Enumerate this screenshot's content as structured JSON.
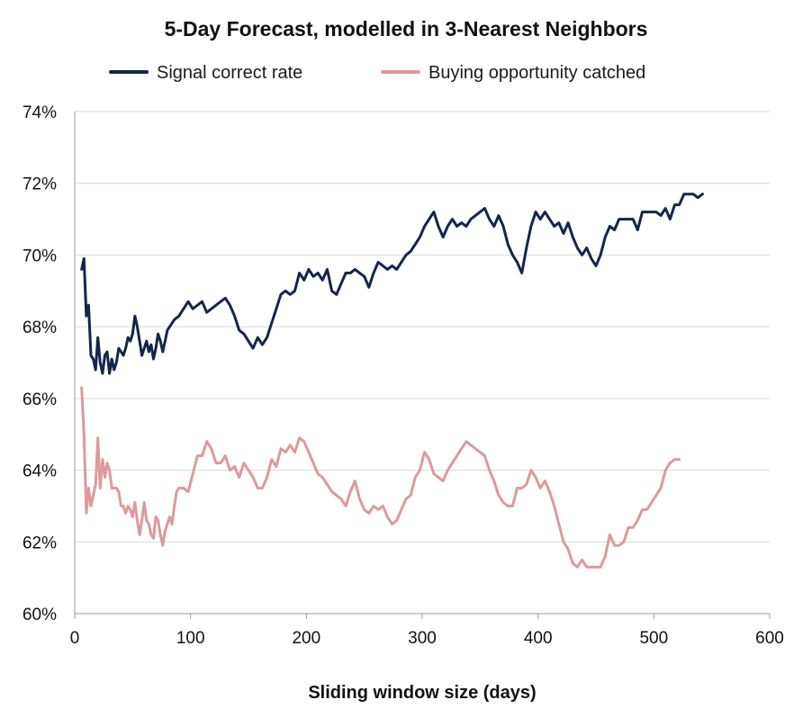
{
  "chart_data": {
    "type": "line",
    "title": "5-Day Forecast, modelled in 3-Nearest Neighbors",
    "xlabel": "Sliding window size (days)",
    "ylabel": "",
    "xlim": [
      0,
      600
    ],
    "ylim": [
      60,
      74
    ],
    "x_ticks": [
      0,
      100,
      200,
      300,
      400,
      500,
      600
    ],
    "x_tick_labels": [
      "0",
      "100",
      "200",
      "300",
      "400",
      "500",
      "600"
    ],
    "y_ticks": [
      60,
      62,
      64,
      66,
      68,
      70,
      72,
      74
    ],
    "y_tick_labels": [
      "60%",
      "62%",
      "64%",
      "66%",
      "68%",
      "70%",
      "72%",
      "74%"
    ],
    "grid": "horizontal",
    "legend_position": "top",
    "series": [
      {
        "name": "Signal correct rate",
        "color": "#13264b",
        "points": [
          [
            6,
            69.6
          ],
          [
            8,
            69.9
          ],
          [
            10,
            68.3
          ],
          [
            12,
            68.6
          ],
          [
            14,
            67.2
          ],
          [
            16,
            67.1
          ],
          [
            18,
            66.8
          ],
          [
            20,
            67.7
          ],
          [
            22,
            67.0
          ],
          [
            24,
            66.7
          ],
          [
            26,
            67.2
          ],
          [
            28,
            67.3
          ],
          [
            30,
            66.7
          ],
          [
            32,
            67.1
          ],
          [
            34,
            66.8
          ],
          [
            36,
            67.0
          ],
          [
            38,
            67.4
          ],
          [
            40,
            67.3
          ],
          [
            42,
            67.2
          ],
          [
            44,
            67.4
          ],
          [
            46,
            67.7
          ],
          [
            48,
            67.6
          ],
          [
            50,
            67.8
          ],
          [
            52,
            68.3
          ],
          [
            54,
            68.0
          ],
          [
            56,
            67.6
          ],
          [
            58,
            67.2
          ],
          [
            60,
            67.4
          ],
          [
            62,
            67.6
          ],
          [
            64,
            67.3
          ],
          [
            66,
            67.5
          ],
          [
            68,
            67.1
          ],
          [
            70,
            67.4
          ],
          [
            72,
            67.8
          ],
          [
            74,
            67.6
          ],
          [
            76,
            67.3
          ],
          [
            78,
            67.6
          ],
          [
            80,
            67.9
          ],
          [
            82,
            68.0
          ],
          [
            86,
            68.2
          ],
          [
            90,
            68.3
          ],
          [
            94,
            68.5
          ],
          [
            98,
            68.7
          ],
          [
            102,
            68.5
          ],
          [
            106,
            68.6
          ],
          [
            110,
            68.7
          ],
          [
            114,
            68.4
          ],
          [
            118,
            68.5
          ],
          [
            122,
            68.6
          ],
          [
            126,
            68.7
          ],
          [
            130,
            68.8
          ],
          [
            134,
            68.6
          ],
          [
            138,
            68.3
          ],
          [
            142,
            67.9
          ],
          [
            146,
            67.8
          ],
          [
            150,
            67.6
          ],
          [
            154,
            67.4
          ],
          [
            158,
            67.7
          ],
          [
            162,
            67.5
          ],
          [
            166,
            67.7
          ],
          [
            170,
            68.1
          ],
          [
            174,
            68.5
          ],
          [
            178,
            68.9
          ],
          [
            182,
            69.0
          ],
          [
            186,
            68.9
          ],
          [
            190,
            69.0
          ],
          [
            194,
            69.5
          ],
          [
            198,
            69.3
          ],
          [
            202,
            69.6
          ],
          [
            206,
            69.4
          ],
          [
            210,
            69.5
          ],
          [
            214,
            69.3
          ],
          [
            218,
            69.6
          ],
          [
            222,
            69.0
          ],
          [
            226,
            68.9
          ],
          [
            230,
            69.2
          ],
          [
            234,
            69.5
          ],
          [
            238,
            69.5
          ],
          [
            242,
            69.6
          ],
          [
            246,
            69.5
          ],
          [
            250,
            69.4
          ],
          [
            254,
            69.1
          ],
          [
            258,
            69.5
          ],
          [
            262,
            69.8
          ],
          [
            266,
            69.7
          ],
          [
            270,
            69.6
          ],
          [
            274,
            69.7
          ],
          [
            278,
            69.6
          ],
          [
            282,
            69.8
          ],
          [
            286,
            70.0
          ],
          [
            290,
            70.1
          ],
          [
            294,
            70.3
          ],
          [
            298,
            70.5
          ],
          [
            302,
            70.8
          ],
          [
            306,
            71.0
          ],
          [
            310,
            71.2
          ],
          [
            314,
            70.8
          ],
          [
            318,
            70.5
          ],
          [
            322,
            70.8
          ],
          [
            326,
            71.0
          ],
          [
            330,
            70.8
          ],
          [
            334,
            70.9
          ],
          [
            338,
            70.8
          ],
          [
            342,
            71.0
          ],
          [
            346,
            71.1
          ],
          [
            350,
            71.2
          ],
          [
            354,
            71.3
          ],
          [
            358,
            71.0
          ],
          [
            362,
            70.8
          ],
          [
            366,
            71.1
          ],
          [
            370,
            70.8
          ],
          [
            374,
            70.3
          ],
          [
            378,
            70.0
          ],
          [
            382,
            69.8
          ],
          [
            386,
            69.5
          ],
          [
            390,
            70.2
          ],
          [
            394,
            70.8
          ],
          [
            398,
            71.2
          ],
          [
            402,
            71.0
          ],
          [
            406,
            71.2
          ],
          [
            410,
            71.0
          ],
          [
            414,
            70.8
          ],
          [
            418,
            70.9
          ],
          [
            422,
            70.6
          ],
          [
            426,
            70.9
          ],
          [
            430,
            70.5
          ],
          [
            434,
            70.2
          ],
          [
            438,
            70.0
          ],
          [
            442,
            70.2
          ],
          [
            446,
            69.9
          ],
          [
            450,
            69.7
          ],
          [
            454,
            70.0
          ],
          [
            458,
            70.5
          ],
          [
            462,
            70.8
          ],
          [
            466,
            70.7
          ],
          [
            470,
            71.0
          ],
          [
            474,
            71.0
          ],
          [
            478,
            71.0
          ],
          [
            482,
            71.0
          ],
          [
            486,
            70.7
          ],
          [
            490,
            71.2
          ],
          [
            494,
            71.2
          ],
          [
            498,
            71.2
          ],
          [
            502,
            71.2
          ],
          [
            506,
            71.1
          ],
          [
            510,
            71.3
          ],
          [
            514,
            71.0
          ],
          [
            518,
            71.4
          ],
          [
            522,
            71.4
          ],
          [
            526,
            71.7
          ],
          [
            530,
            71.7
          ],
          [
            534,
            71.7
          ],
          [
            538,
            71.6
          ],
          [
            542,
            71.7
          ]
        ]
      },
      {
        "name": "Buying opportunity catched",
        "color": "#dc9a9c",
        "points": [
          [
            6,
            66.3
          ],
          [
            8,
            65.0
          ],
          [
            10,
            62.8
          ],
          [
            12,
            63.5
          ],
          [
            14,
            63.0
          ],
          [
            16,
            63.3
          ],
          [
            18,
            63.6
          ],
          [
            20,
            64.9
          ],
          [
            22,
            63.5
          ],
          [
            24,
            64.3
          ],
          [
            26,
            63.8
          ],
          [
            28,
            64.2
          ],
          [
            30,
            64.0
          ],
          [
            32,
            63.5
          ],
          [
            34,
            63.5
          ],
          [
            36,
            63.5
          ],
          [
            38,
            63.4
          ],
          [
            40,
            63.0
          ],
          [
            42,
            63.0
          ],
          [
            44,
            62.8
          ],
          [
            46,
            63.0
          ],
          [
            48,
            62.9
          ],
          [
            50,
            62.7
          ],
          [
            52,
            63.1
          ],
          [
            54,
            62.6
          ],
          [
            56,
            62.2
          ],
          [
            58,
            62.6
          ],
          [
            60,
            63.1
          ],
          [
            62,
            62.6
          ],
          [
            64,
            62.5
          ],
          [
            66,
            62.2
          ],
          [
            68,
            62.1
          ],
          [
            70,
            62.7
          ],
          [
            72,
            62.6
          ],
          [
            74,
            62.2
          ],
          [
            76,
            61.9
          ],
          [
            78,
            62.3
          ],
          [
            80,
            62.5
          ],
          [
            82,
            62.7
          ],
          [
            84,
            62.5
          ],
          [
            86,
            63.0
          ],
          [
            88,
            63.4
          ],
          [
            90,
            63.5
          ],
          [
            94,
            63.5
          ],
          [
            98,
            63.4
          ],
          [
            102,
            63.9
          ],
          [
            106,
            64.4
          ],
          [
            110,
            64.4
          ],
          [
            114,
            64.8
          ],
          [
            118,
            64.6
          ],
          [
            122,
            64.2
          ],
          [
            126,
            64.2
          ],
          [
            130,
            64.4
          ],
          [
            134,
            64.0
          ],
          [
            138,
            64.1
          ],
          [
            142,
            63.8
          ],
          [
            146,
            64.2
          ],
          [
            150,
            64.0
          ],
          [
            154,
            63.8
          ],
          [
            158,
            63.5
          ],
          [
            162,
            63.5
          ],
          [
            166,
            63.8
          ],
          [
            170,
            64.3
          ],
          [
            174,
            64.1
          ],
          [
            178,
            64.6
          ],
          [
            182,
            64.5
          ],
          [
            186,
            64.7
          ],
          [
            190,
            64.5
          ],
          [
            194,
            64.9
          ],
          [
            198,
            64.8
          ],
          [
            202,
            64.5
          ],
          [
            206,
            64.2
          ],
          [
            210,
            63.9
          ],
          [
            214,
            63.8
          ],
          [
            218,
            63.6
          ],
          [
            222,
            63.4
          ],
          [
            226,
            63.3
          ],
          [
            230,
            63.2
          ],
          [
            234,
            63.0
          ],
          [
            238,
            63.4
          ],
          [
            242,
            63.7
          ],
          [
            246,
            63.2
          ],
          [
            250,
            62.9
          ],
          [
            254,
            62.8
          ],
          [
            258,
            63.0
          ],
          [
            262,
            62.9
          ],
          [
            266,
            63.0
          ],
          [
            270,
            62.7
          ],
          [
            274,
            62.5
          ],
          [
            278,
            62.6
          ],
          [
            282,
            62.9
          ],
          [
            286,
            63.2
          ],
          [
            290,
            63.3
          ],
          [
            294,
            63.8
          ],
          [
            298,
            64.0
          ],
          [
            302,
            64.5
          ],
          [
            306,
            64.3
          ],
          [
            310,
            63.9
          ],
          [
            314,
            63.8
          ],
          [
            318,
            63.7
          ],
          [
            322,
            64.0
          ],
          [
            326,
            64.2
          ],
          [
            330,
            64.4
          ],
          [
            334,
            64.6
          ],
          [
            338,
            64.8
          ],
          [
            342,
            64.7
          ],
          [
            346,
            64.6
          ],
          [
            350,
            64.5
          ],
          [
            354,
            64.4
          ],
          [
            358,
            64.0
          ],
          [
            362,
            63.7
          ],
          [
            366,
            63.3
          ],
          [
            370,
            63.1
          ],
          [
            374,
            63.0
          ],
          [
            378,
            63.0
          ],
          [
            382,
            63.5
          ],
          [
            386,
            63.5
          ],
          [
            390,
            63.6
          ],
          [
            394,
            64.0
          ],
          [
            398,
            63.8
          ],
          [
            402,
            63.5
          ],
          [
            406,
            63.7
          ],
          [
            410,
            63.4
          ],
          [
            414,
            63.0
          ],
          [
            418,
            62.5
          ],
          [
            422,
            62.0
          ],
          [
            426,
            61.8
          ],
          [
            430,
            61.4
          ],
          [
            434,
            61.3
          ],
          [
            438,
            61.5
          ],
          [
            442,
            61.3
          ],
          [
            446,
            61.3
          ],
          [
            450,
            61.3
          ],
          [
            454,
            61.3
          ],
          [
            458,
            61.6
          ],
          [
            462,
            62.2
          ],
          [
            466,
            61.9
          ],
          [
            470,
            61.9
          ],
          [
            474,
            62.0
          ],
          [
            478,
            62.4
          ],
          [
            482,
            62.4
          ],
          [
            486,
            62.6
          ],
          [
            490,
            62.9
          ],
          [
            494,
            62.9
          ],
          [
            498,
            63.1
          ],
          [
            502,
            63.3
          ],
          [
            506,
            63.5
          ],
          [
            510,
            64.0
          ],
          [
            514,
            64.2
          ],
          [
            518,
            64.3
          ],
          [
            522,
            64.3
          ]
        ]
      }
    ]
  }
}
